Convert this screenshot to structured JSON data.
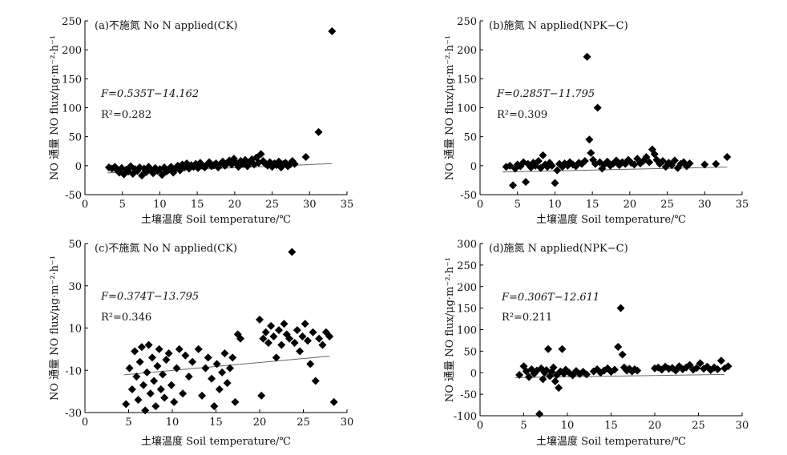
{
  "chart_data": [
    {
      "id": "a",
      "type": "scatter",
      "title": "(a)不施氮 No N applied(CK)",
      "xlabel": "土壤温度 Soil temperature/℃",
      "ylabel": "NO 通量 NO flux/μg·m⁻²·h⁻¹",
      "xlim": [
        0,
        35
      ],
      "ylim": [
        -50,
        250
      ],
      "xticks": [
        0,
        5,
        10,
        15,
        20,
        25,
        30,
        35
      ],
      "yticks": [
        -50,
        0,
        50,
        100,
        150,
        200,
        250
      ],
      "equation": "F=0.535T−14.162",
      "r2": "R²=0.282",
      "trend": {
        "slope": 0.535,
        "intercept": -14.162,
        "x_range": [
          3,
          33
        ]
      },
      "points": [
        [
          3.2,
          -3
        ],
        [
          3.6,
          -5
        ],
        [
          4.0,
          -2
        ],
        [
          4.3,
          -8
        ],
        [
          4.6,
          -12
        ],
        [
          4.9,
          -4
        ],
        [
          5.2,
          -15
        ],
        [
          5.5,
          -7
        ],
        [
          5.8,
          -10
        ],
        [
          6.1,
          -1
        ],
        [
          6.4,
          -14
        ],
        [
          6.7,
          -6
        ],
        [
          7.0,
          -9
        ],
        [
          7.3,
          -3
        ],
        [
          7.6,
          -17
        ],
        [
          7.9,
          -5
        ],
        [
          8.2,
          -11
        ],
        [
          8.5,
          -2
        ],
        [
          8.8,
          -8
        ],
        [
          9.1,
          -13
        ],
        [
          9.4,
          -4
        ],
        [
          9.7,
          -9
        ],
        [
          10.0,
          -6
        ],
        [
          10.3,
          -16
        ],
        [
          10.6,
          -3
        ],
        [
          10.9,
          -10
        ],
        [
          11.2,
          -7
        ],
        [
          11.5,
          -2
        ],
        [
          11.8,
          -12
        ],
        [
          12.1,
          -5
        ],
        [
          12.4,
          0
        ],
        [
          12.7,
          -8
        ],
        [
          13.0,
          2
        ],
        [
          13.3,
          -3
        ],
        [
          13.6,
          4
        ],
        [
          13.9,
          -5
        ],
        [
          14.2,
          1
        ],
        [
          14.5,
          -2
        ],
        [
          14.8,
          3
        ],
        [
          15.1,
          -4
        ],
        [
          15.4,
          5
        ],
        [
          15.7,
          0
        ],
        [
          16.0,
          -3
        ],
        [
          16.3,
          2
        ],
        [
          16.6,
          6
        ],
        [
          16.9,
          -1
        ],
        [
          17.2,
          1
        ],
        [
          17.5,
          4
        ],
        [
          17.8,
          -3
        ],
        [
          18.1,
          3
        ],
        [
          18.4,
          7
        ],
        [
          18.7,
          0
        ],
        [
          19.0,
          5
        ],
        [
          19.3,
          9
        ],
        [
          19.6,
          2
        ],
        [
          19.9,
          12
        ],
        [
          20.2,
          4
        ],
        [
          20.5,
          -2
        ],
        [
          20.8,
          8
        ],
        [
          21.1,
          3
        ],
        [
          21.4,
          10
        ],
        [
          21.7,
          -1
        ],
        [
          22.0,
          6
        ],
        [
          22.3,
          11
        ],
        [
          22.6,
          2
        ],
        [
          22.9,
          14
        ],
        [
          23.2,
          5
        ],
        [
          23.5,
          20
        ],
        [
          23.8,
          8
        ],
        [
          24.1,
          3
        ],
        [
          24.4,
          0
        ],
        [
          24.7,
          6
        ],
        [
          25.0,
          -2
        ],
        [
          25.3,
          4
        ],
        [
          25.6,
          1
        ],
        [
          25.9,
          7
        ],
        [
          26.2,
          -3
        ],
        [
          26.5,
          3
        ],
        [
          26.8,
          5
        ],
        [
          27.1,
          -1
        ],
        [
          27.4,
          2
        ],
        [
          27.7,
          8
        ],
        [
          28.0,
          3
        ],
        [
          29.5,
          15
        ],
        [
          31.2,
          58
        ],
        [
          33.0,
          232
        ]
      ]
    },
    {
      "id": "b",
      "type": "scatter",
      "title": "(b)施氮 N applied(NPK−C)",
      "xlabel": "土壤温度 Soil temperature/℃",
      "ylabel": "NO 通量 NO flux/μg·m⁻²·h⁻¹",
      "xlim": [
        0,
        35
      ],
      "ylim": [
        -50,
        250
      ],
      "xticks": [
        0,
        5,
        10,
        15,
        20,
        25,
        30,
        35
      ],
      "yticks": [
        -50,
        0,
        50,
        100,
        150,
        200,
        250
      ],
      "equation": "F=0.285T−11.795",
      "r2": "R²=0.309",
      "trend": {
        "slope": 0.285,
        "intercept": -11.795,
        "x_range": [
          3,
          33
        ]
      },
      "points": [
        [
          3.5,
          -2
        ],
        [
          4.0,
          0
        ],
        [
          4.4,
          -34
        ],
        [
          4.7,
          -5
        ],
        [
          5.0,
          2
        ],
        [
          5.4,
          -1
        ],
        [
          5.8,
          6
        ],
        [
          6.1,
          -28
        ],
        [
          6.4,
          3
        ],
        [
          6.8,
          -3
        ],
        [
          7.1,
          5
        ],
        [
          7.4,
          0
        ],
        [
          7.8,
          8
        ],
        [
          8.1,
          -4
        ],
        [
          8.4,
          18
        ],
        [
          8.7,
          2
        ],
        [
          9.0,
          -2
        ],
        [
          9.3,
          5
        ],
        [
          9.6,
          0
        ],
        [
          10.0,
          -30
        ],
        [
          10.3,
          -8
        ],
        [
          10.6,
          3
        ],
        [
          11.0,
          -2
        ],
        [
          11.3,
          4
        ],
        [
          11.7,
          0
        ],
        [
          12.0,
          6
        ],
        [
          12.4,
          2
        ],
        [
          12.8,
          -1
        ],
        [
          13.2,
          5
        ],
        [
          13.6,
          3
        ],
        [
          14.0,
          8
        ],
        [
          14.3,
          188
        ],
        [
          14.6,
          45
        ],
        [
          14.8,
          22
        ],
        [
          15.1,
          10
        ],
        [
          15.4,
          3
        ],
        [
          15.7,
          100
        ],
        [
          16.0,
          6
        ],
        [
          16.3,
          -5
        ],
        [
          16.6,
          2
        ],
        [
          17.0,
          7
        ],
        [
          17.4,
          0
        ],
        [
          17.8,
          4
        ],
        [
          18.2,
          9
        ],
        [
          18.6,
          1
        ],
        [
          19.0,
          6
        ],
        [
          19.4,
          3
        ],
        [
          19.8,
          10
        ],
        [
          20.2,
          5
        ],
        [
          20.6,
          2
        ],
        [
          21.0,
          12
        ],
        [
          21.4,
          4
        ],
        [
          21.8,
          8
        ],
        [
          22.2,
          15
        ],
        [
          22.6,
          6
        ],
        [
          23.0,
          28
        ],
        [
          23.3,
          20
        ],
        [
          23.6,
          10
        ],
        [
          24.0,
          3
        ],
        [
          24.4,
          8
        ],
        [
          24.8,
          -2
        ],
        [
          25.2,
          5
        ],
        [
          25.6,
          1
        ],
        [
          26.0,
          9
        ],
        [
          26.4,
          -4
        ],
        [
          26.8,
          3
        ],
        [
          27.2,
          6
        ],
        [
          27.6,
          -1
        ],
        [
          28.0,
          4
        ],
        [
          30.0,
          2
        ],
        [
          31.5,
          3
        ],
        [
          33.0,
          15
        ]
      ]
    },
    {
      "id": "c",
      "type": "scatter",
      "title": "(c)不施氮 No N applied(CK)",
      "xlabel": "土壤温度 Soil temperature/℃",
      "ylabel": "NO 通量 NO flux/μg·m⁻²·h⁻¹",
      "xlim": [
        0,
        30
      ],
      "ylim": [
        -30,
        50
      ],
      "xticks": [
        0,
        5,
        10,
        15,
        20,
        25,
        30
      ],
      "yticks": [
        -30,
        -10,
        10,
        30,
        50
      ],
      "equation": "F=0.374T−13.795",
      "r2": "R²=0.346",
      "trend": {
        "slope": 0.374,
        "intercept": -13.795,
        "x_range": [
          4.5,
          28
        ]
      },
      "points": [
        [
          4.7,
          -26
        ],
        [
          5.1,
          -9
        ],
        [
          5.4,
          -19
        ],
        [
          5.7,
          -1
        ],
        [
          5.9,
          -13
        ],
        [
          6.1,
          -24
        ],
        [
          6.3,
          -6
        ],
        [
          6.5,
          1
        ],
        [
          6.7,
          -17
        ],
        [
          6.9,
          -29
        ],
        [
          7.1,
          -11
        ],
        [
          7.3,
          2
        ],
        [
          7.5,
          -21
        ],
        [
          7.7,
          -4
        ],
        [
          7.9,
          -15
        ],
        [
          8.1,
          -27
        ],
        [
          8.3,
          -8
        ],
        [
          8.5,
          0
        ],
        [
          8.7,
          -19
        ],
        [
          8.9,
          -12
        ],
        [
          9.1,
          -23
        ],
        [
          9.3,
          -5
        ],
        [
          9.6,
          -2
        ],
        [
          9.9,
          -17
        ],
        [
          10.2,
          -25
        ],
        [
          10.5,
          -9
        ],
        [
          10.8,
          0
        ],
        [
          11.2,
          -21
        ],
        [
          11.5,
          -3
        ],
        [
          11.9,
          -13
        ],
        [
          12.3,
          -6
        ],
        [
          13.0,
          0
        ],
        [
          13.4,
          -22
        ],
        [
          13.8,
          -9
        ],
        [
          14.1,
          -4
        ],
        [
          14.5,
          -14
        ],
        [
          14.8,
          -27
        ],
        [
          15.1,
          -7
        ],
        [
          15.4,
          -19
        ],
        [
          15.7,
          -11
        ],
        [
          16.0,
          -2
        ],
        [
          16.3,
          -16
        ],
        [
          16.6,
          -9
        ],
        [
          16.9,
          -4
        ],
        [
          17.2,
          -25
        ],
        [
          17.5,
          7
        ],
        [
          17.8,
          5
        ],
        [
          20.0,
          14
        ],
        [
          20.2,
          -22
        ],
        [
          20.4,
          5
        ],
        [
          20.7,
          8
        ],
        [
          21.0,
          3
        ],
        [
          21.3,
          11
        ],
        [
          21.6,
          6
        ],
        [
          21.9,
          -4
        ],
        [
          22.2,
          9
        ],
        [
          22.5,
          2
        ],
        [
          22.8,
          12
        ],
        [
          23.1,
          7
        ],
        [
          23.4,
          5
        ],
        [
          23.7,
          46
        ],
        [
          24.0,
          3
        ],
        [
          24.3,
          9
        ],
        [
          24.6,
          -1
        ],
        [
          24.9,
          6
        ],
        [
          25.2,
          12
        ],
        [
          25.5,
          4
        ],
        [
          25.8,
          -7
        ],
        [
          26.1,
          8
        ],
        [
          26.4,
          -15
        ],
        [
          26.8,
          5
        ],
        [
          27.2,
          2
        ],
        [
          27.6,
          8
        ],
        [
          28.0,
          6
        ],
        [
          28.5,
          -25
        ]
      ]
    },
    {
      "id": "d",
      "type": "scatter",
      "title": "(d)施氮 N applied(NPK−C)",
      "xlabel": "土壤温度 Soil temperature/℃",
      "ylabel": "NO 通量 NO flux/μg·m⁻²·h⁻¹",
      "xlim": [
        0,
        30
      ],
      "ylim": [
        -100,
        300
      ],
      "xticks": [
        0,
        5,
        10,
        15,
        20,
        25,
        30
      ],
      "yticks": [
        -100,
        -50,
        0,
        50,
        100,
        150,
        200,
        250,
        300
      ],
      "equation": "F=0.306T−12.611",
      "r2": "R²=0.211",
      "trend": {
        "slope": 0.306,
        "intercept": -12.611,
        "x_range": [
          4,
          28
        ]
      },
      "points": [
        [
          4.5,
          -5
        ],
        [
          5.0,
          15
        ],
        [
          5.3,
          3
        ],
        [
          5.6,
          -10
        ],
        [
          5.9,
          8
        ],
        [
          6.2,
          -2
        ],
        [
          6.5,
          5
        ],
        [
          6.8,
          -96
        ],
        [
          7.0,
          10
        ],
        [
          7.2,
          -15
        ],
        [
          7.4,
          0
        ],
        [
          7.6,
          6
        ],
        [
          7.8,
          55
        ],
        [
          8.0,
          -8
        ],
        [
          8.2,
          2
        ],
        [
          8.4,
          12
        ],
        [
          8.6,
          -20
        ],
        [
          8.8,
          -5
        ],
        [
          9.0,
          -35
        ],
        [
          9.2,
          3
        ],
        [
          9.4,
          55
        ],
        [
          9.6,
          -2
        ],
        [
          9.8,
          7
        ],
        [
          10.2,
          0
        ],
        [
          10.6,
          -6
        ],
        [
          11.0,
          4
        ],
        [
          11.4,
          -3
        ],
        [
          11.8,
          2
        ],
        [
          12.2,
          -4
        ],
        [
          13.0,
          3
        ],
        [
          13.4,
          8
        ],
        [
          13.8,
          0
        ],
        [
          14.2,
          5
        ],
        [
          14.6,
          10
        ],
        [
          15.0,
          2
        ],
        [
          15.4,
          7
        ],
        [
          15.8,
          60
        ],
        [
          16.1,
          150
        ],
        [
          16.3,
          42
        ],
        [
          16.5,
          12
        ],
        [
          16.8,
          5
        ],
        [
          17.1,
          9
        ],
        [
          17.4,
          3
        ],
        [
          17.7,
          8
        ],
        [
          18.0,
          5
        ],
        [
          20.0,
          10
        ],
        [
          20.4,
          12
        ],
        [
          20.8,
          7
        ],
        [
          21.2,
          14
        ],
        [
          21.6,
          9
        ],
        [
          22.0,
          11
        ],
        [
          22.4,
          5
        ],
        [
          22.8,
          15
        ],
        [
          23.2,
          8
        ],
        [
          23.6,
          12
        ],
        [
          24.0,
          18
        ],
        [
          24.4,
          7
        ],
        [
          24.8,
          11
        ],
        [
          25.2,
          22
        ],
        [
          25.6,
          9
        ],
        [
          26.0,
          14
        ],
        [
          26.4,
          6
        ],
        [
          26.8,
          12
        ],
        [
          27.2,
          8
        ],
        [
          27.6,
          28
        ],
        [
          28.0,
          10
        ],
        [
          28.4,
          15
        ]
      ]
    }
  ]
}
